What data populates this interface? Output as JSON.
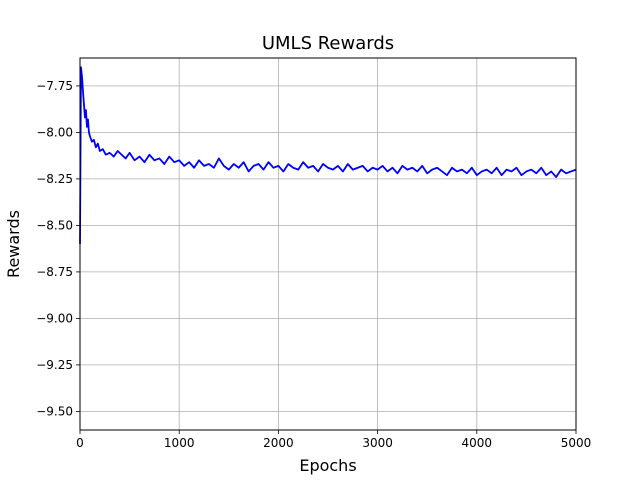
{
  "chart_data": {
    "type": "line",
    "title": "UMLS Rewards",
    "xlabel": "Epochs",
    "ylabel": "Rewards",
    "xlim": [
      0,
      5000
    ],
    "ylim": [
      -9.6,
      -7.6
    ],
    "xticks": [
      0,
      1000,
      2000,
      3000,
      4000,
      5000
    ],
    "yticks": [
      -9.5,
      -9.25,
      -9.0,
      -8.75,
      -8.5,
      -8.25,
      -8.0,
      -7.75
    ],
    "xtick_labels": [
      "0",
      "1000",
      "2000",
      "3000",
      "4000",
      "5000"
    ],
    "ytick_labels": [
      "−9.50",
      "−9.25",
      "−9.00",
      "−8.75",
      "−8.50",
      "−8.25",
      "−8.00",
      "−7.75"
    ],
    "grid": true,
    "legend": "none",
    "series": [
      {
        "color": "#0000ff",
        "x": [
          0,
          10,
          20,
          30,
          40,
          50,
          60,
          70,
          80,
          90,
          100,
          120,
          140,
          160,
          180,
          200,
          230,
          260,
          300,
          340,
          380,
          420,
          460,
          500,
          550,
          600,
          650,
          700,
          750,
          800,
          850,
          900,
          950,
          1000,
          1050,
          1100,
          1150,
          1200,
          1250,
          1300,
          1350,
          1400,
          1450,
          1500,
          1550,
          1600,
          1650,
          1700,
          1750,
          1800,
          1850,
          1900,
          1950,
          2000,
          2050,
          2100,
          2150,
          2200,
          2250,
          2300,
          2350,
          2400,
          2450,
          2500,
          2550,
          2600,
          2650,
          2700,
          2750,
          2800,
          2850,
          2900,
          2950,
          3000,
          3050,
          3100,
          3150,
          3200,
          3250,
          3300,
          3350,
          3400,
          3450,
          3500,
          3550,
          3600,
          3650,
          3700,
          3750,
          3800,
          3850,
          3900,
          3950,
          4000,
          4050,
          4100,
          4150,
          4200,
          4250,
          4300,
          4350,
          4400,
          4450,
          4500,
          4550,
          4600,
          4650,
          4700,
          4750,
          4800,
          4850,
          4900,
          4950,
          5000
        ],
        "y": [
          -8.6,
          -7.65,
          -7.7,
          -7.78,
          -7.85,
          -7.92,
          -7.88,
          -7.97,
          -7.93,
          -8.0,
          -8.02,
          -8.05,
          -8.04,
          -8.08,
          -8.06,
          -8.1,
          -8.09,
          -8.12,
          -8.11,
          -8.13,
          -8.1,
          -8.12,
          -8.14,
          -8.11,
          -8.15,
          -8.13,
          -8.16,
          -8.12,
          -8.15,
          -8.14,
          -8.17,
          -8.13,
          -8.16,
          -8.15,
          -8.18,
          -8.16,
          -8.19,
          -8.15,
          -8.18,
          -8.17,
          -8.19,
          -8.14,
          -8.18,
          -8.2,
          -8.17,
          -8.19,
          -8.16,
          -8.21,
          -8.18,
          -8.17,
          -8.2,
          -8.16,
          -8.19,
          -8.18,
          -8.21,
          -8.17,
          -8.19,
          -8.2,
          -8.16,
          -8.19,
          -8.18,
          -8.21,
          -8.17,
          -8.19,
          -8.2,
          -8.18,
          -8.21,
          -8.17,
          -8.2,
          -8.19,
          -8.18,
          -8.21,
          -8.19,
          -8.2,
          -8.18,
          -8.21,
          -8.19,
          -8.22,
          -8.18,
          -8.2,
          -8.19,
          -8.21,
          -8.18,
          -8.22,
          -8.2,
          -8.19,
          -8.21,
          -8.23,
          -8.19,
          -8.21,
          -8.2,
          -8.22,
          -8.19,
          -8.23,
          -8.21,
          -8.2,
          -8.22,
          -8.19,
          -8.23,
          -8.2,
          -8.21,
          -8.19,
          -8.23,
          -8.21,
          -8.2,
          -8.22,
          -8.19,
          -8.23,
          -8.21,
          -8.24,
          -8.2,
          -8.22,
          -8.21,
          -8.2
        ]
      }
    ]
  }
}
